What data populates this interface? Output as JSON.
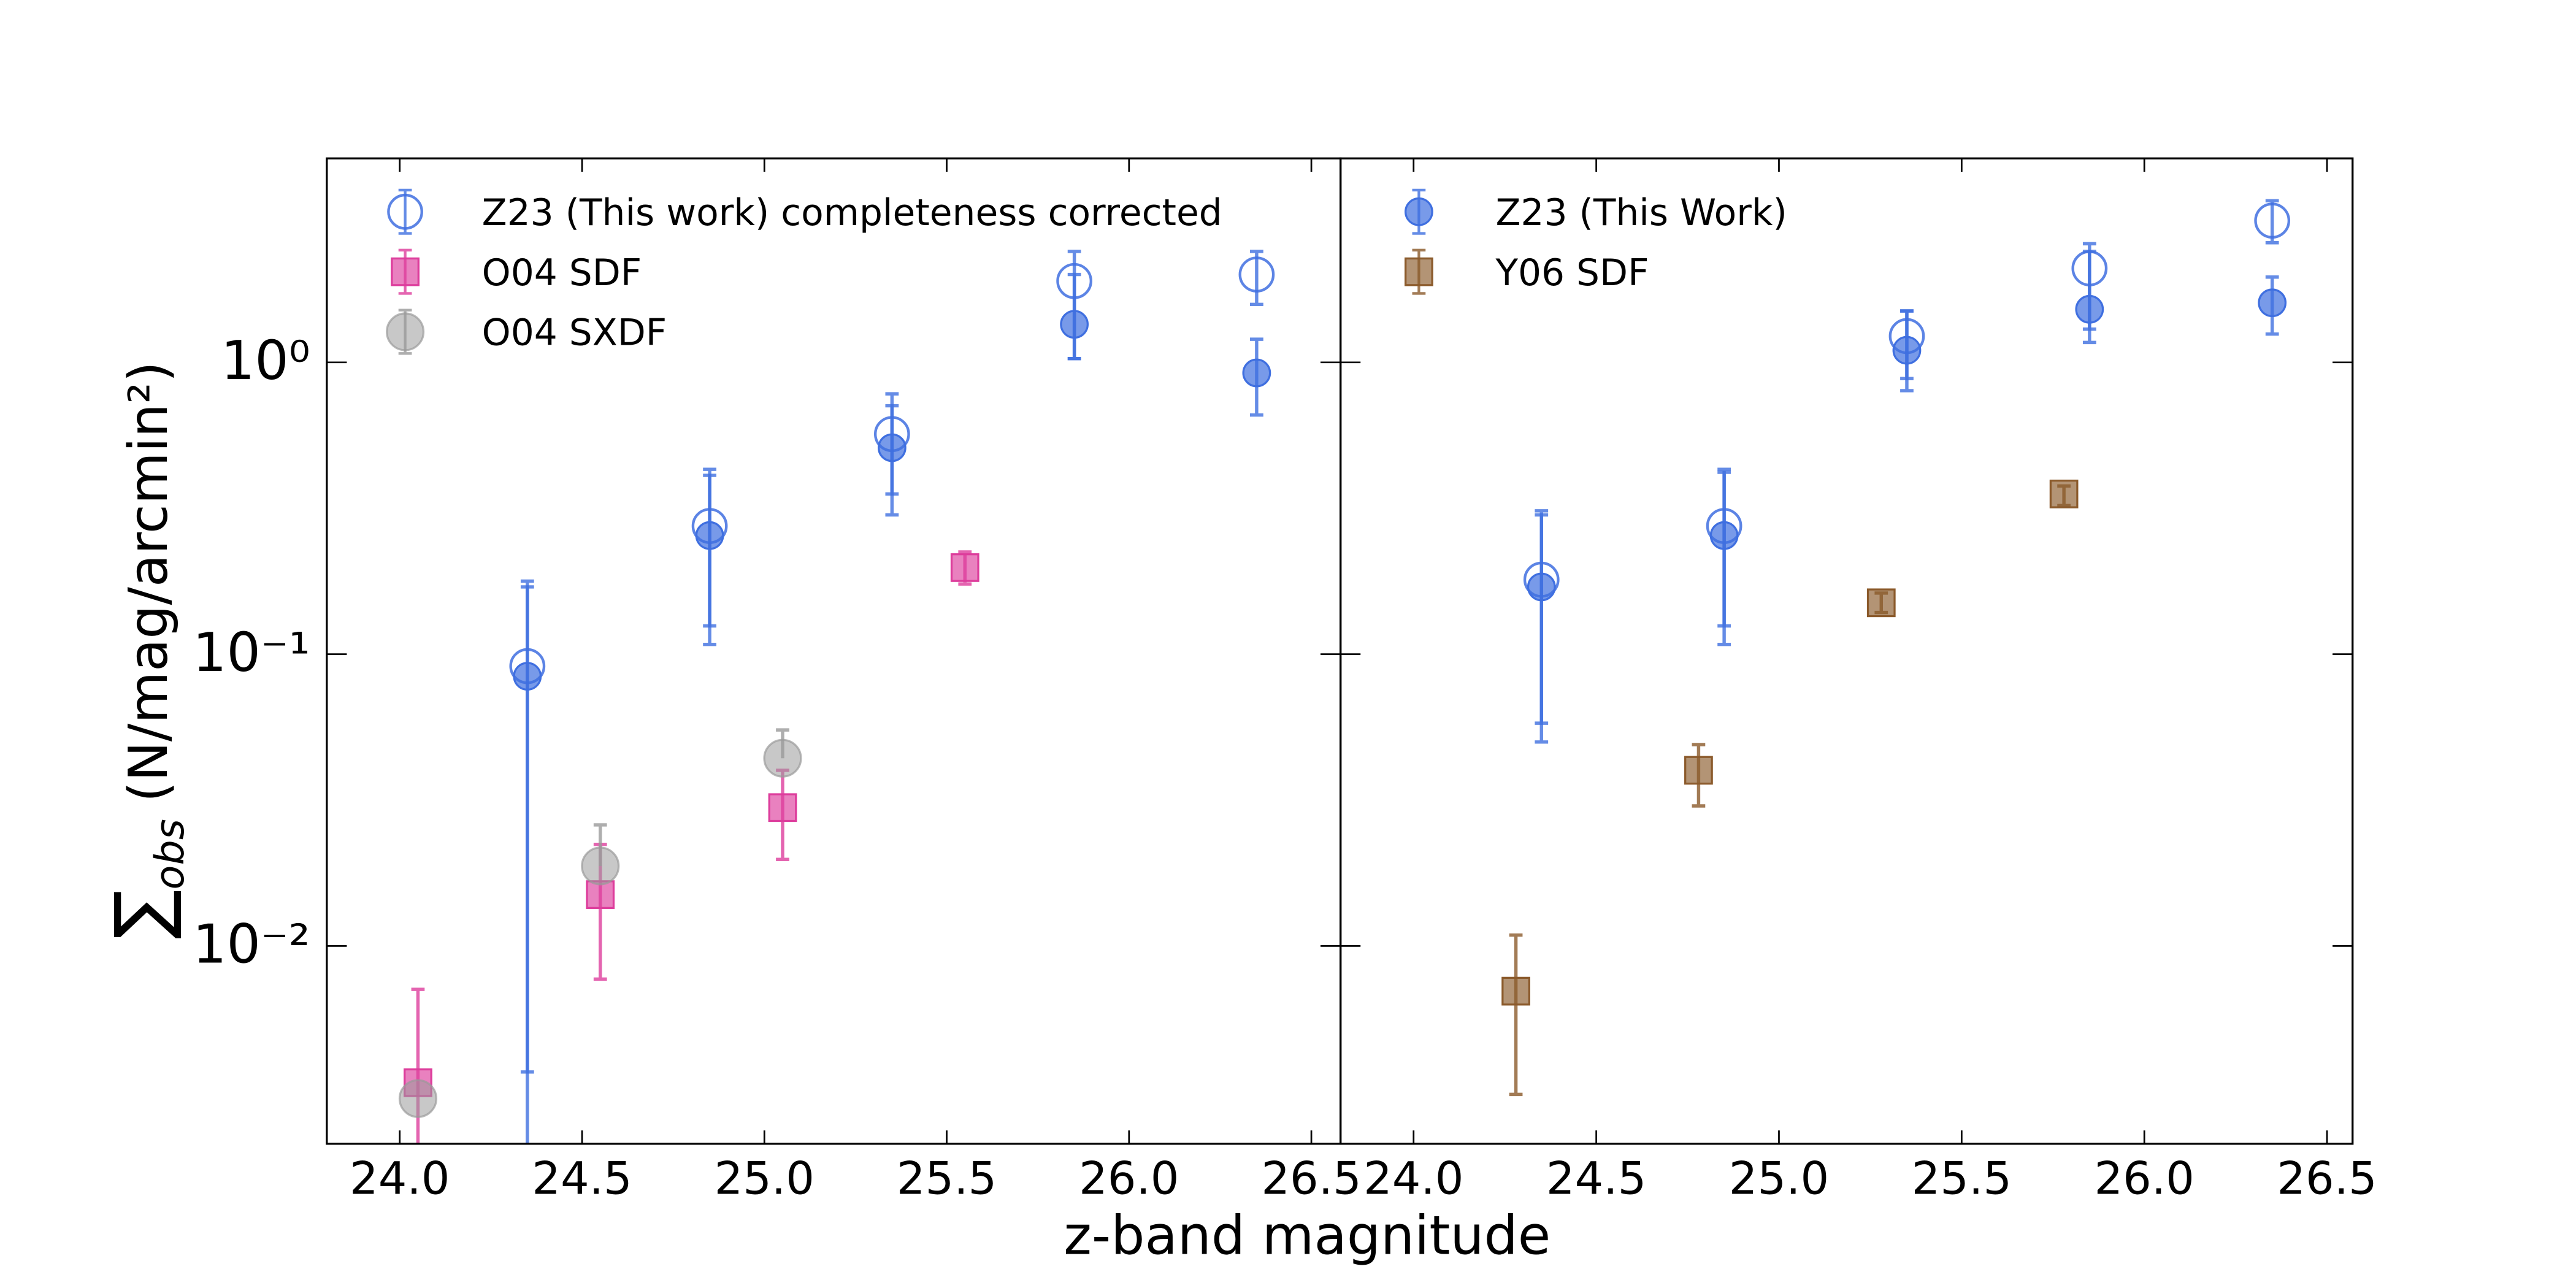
{
  "chart_data": [
    {
      "type": "scatter",
      "log_y": true,
      "legend": "upper left",
      "xlabel": "z-band magnitude",
      "ylabel": {
        "symbol": "∑",
        "subscript": "obs",
        "text": "(N/mag/arcmin²)"
      },
      "xlim": [
        23.8,
        26.58
      ],
      "ylim": [
        0.0021,
        5
      ],
      "xticks": [
        {
          "value": 24,
          "label": "24.0"
        },
        24.5,
        {
          "value": 25,
          "label": "25.0"
        },
        25.5,
        {
          "value": 26,
          "label": "26.0"
        },
        26.5
      ],
      "yticks": [
        {
          "value": 0.01,
          "label": "10⁻²"
        },
        {
          "value": 0.1,
          "label": "10⁻¹"
        },
        {
          "value": 1,
          "label": "10⁰"
        }
      ],
      "series": [
        {
          "name": "Z23 (This work) completeness corrected",
          "color": "#3f6fe0",
          "marker": "circle-open",
          "x": [
            24.35,
            24.85,
            25.35,
            25.85,
            26.35
          ],
          "values": [
            0.091,
            0.275,
            0.568,
            1.9,
            2.0
          ],
          "lower": [
            0.0037,
            0.108,
            0.3,
            1.03,
            1.58
          ],
          "upper": [
            0.178,
            0.43,
            0.78,
            2.4,
            2.4
          ]
        },
        {
          "name": null,
          "color": "#3f6fe0",
          "marker": "circle",
          "x": [
            24.35,
            24.85,
            25.35,
            25.85,
            26.35
          ],
          "values": [
            0.084,
            0.255,
            0.51,
            1.35,
            0.92
          ],
          "lower": [
            0.001,
            0.125,
            0.354,
            1.03,
            0.66
          ],
          "upper": [
            0.17,
            0.41,
            0.71,
            2.0,
            1.2
          ]
        },
        {
          "name": "O04 SDF",
          "color": "#dd3d9c",
          "marker": "square",
          "x": [
            24.05,
            24.55,
            25.05,
            25.55
          ],
          "values": [
            0.0034,
            0.015,
            0.0298,
            0.198
          ],
          "lower": [
            0.001,
            0.0077,
            0.0198,
            0.174
          ],
          "upper": [
            0.0071,
            0.0223,
            0.04,
            0.224
          ]
        },
        {
          "name": "O04 SXDF",
          "color": "#9a9a9a",
          "marker": "circle-big",
          "x": [
            24.05,
            24.55,
            25.05
          ],
          "values": [
            0.003,
            0.0188,
            0.044
          ],
          "lower": [
            null,
            null,
            null
          ],
          "upper": [
            null,
            0.026,
            0.055
          ]
        }
      ]
    },
    {
      "type": "scatter",
      "log_y": true,
      "legend": "upper left",
      "xlim": [
        23.8,
        26.57
      ],
      "ylim": [
        0.0021,
        5
      ],
      "xticks": [
        {
          "value": 24,
          "label": "24.0"
        },
        24.5,
        {
          "value": 25,
          "label": "25.0"
        },
        25.5,
        {
          "value": 26,
          "label": "26.0"
        },
        26.5
      ],
      "yticks": [
        0.01,
        0.1,
        1
      ],
      "series": [
        {
          "name": null,
          "color": "#3f6fe0",
          "marker": "circle-open",
          "x": [
            24.35,
            24.85,
            25.35,
            25.85,
            26.35
          ],
          "values": [
            0.18,
            0.275,
            1.23,
            2.1,
            3.06
          ],
          "lower": [
            0.058,
            0.125,
            0.88,
            1.3,
            2.57
          ],
          "upper": [
            0.31,
            0.43,
            1.5,
            2.55,
            3.58
          ]
        },
        {
          "name": "Z23 (This Work)",
          "color": "#3f6fe0",
          "marker": "circle",
          "x": [
            24.35,
            24.85,
            25.35,
            25.85,
            26.35
          ],
          "values": [
            0.17,
            0.255,
            1.1,
            1.52,
            1.6
          ],
          "lower": [
            0.05,
            0.108,
            0.8,
            1.17,
            1.25
          ],
          "upper": [
            0.3,
            0.42,
            1.5,
            2.4,
            1.96
          ]
        },
        {
          "name": "Y06 SDF",
          "color": "#8b5a2b",
          "marker": "square",
          "x": [
            24.28,
            24.78,
            25.28,
            25.78
          ],
          "values": [
            0.007,
            0.04,
            0.15,
            0.354
          ],
          "lower": [
            0.0031,
            0.0302,
            0.139,
            0.323
          ],
          "upper": [
            0.0109,
            0.049,
            0.162,
            0.377
          ]
        }
      ]
    }
  ]
}
